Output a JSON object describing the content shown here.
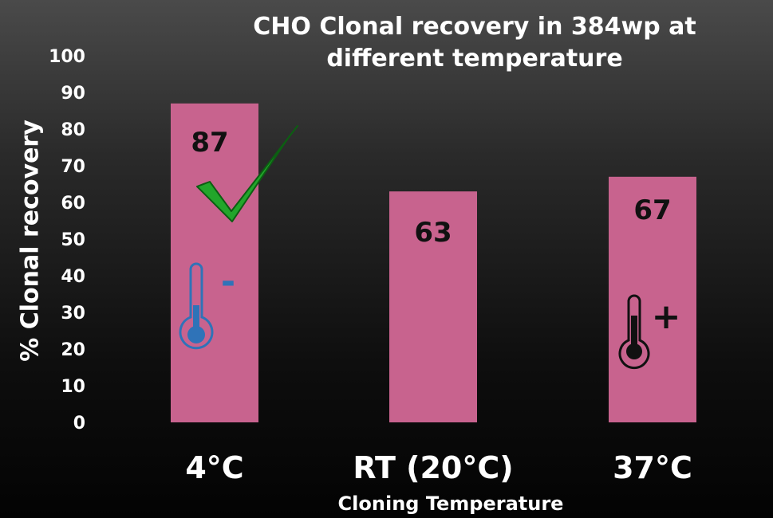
{
  "chart_data": {
    "type": "bar",
    "title": "CHO Clonal recovery in 384wp at different temperature",
    "xlabel": "Cloning Temperature",
    "ylabel": "% Clonal recovery",
    "categories": [
      "4°C",
      "RT (20°C)",
      "37°C"
    ],
    "values": [
      87,
      63,
      67
    ],
    "data_labels": [
      "87",
      "63",
      "67"
    ],
    "ylim": [
      0,
      100
    ],
    "yticks": [
      0,
      10,
      20,
      30,
      40,
      50,
      60,
      70,
      80,
      90,
      100
    ],
    "grid": false,
    "legend": "none"
  },
  "colors": {
    "bar": "#c8638e",
    "cold_icon": "#2f73b8",
    "hot_icon": "#111111",
    "check": "#22a62b"
  },
  "annotations": {
    "cold_sign": "-",
    "hot_sign": "+",
    "icons": [
      "thermometer-cold-icon",
      "thermometer-hot-icon",
      "checkmark-icon"
    ]
  }
}
